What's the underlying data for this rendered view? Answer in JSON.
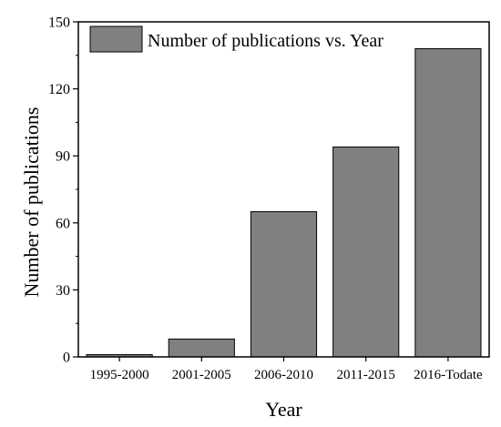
{
  "chart_data": {
    "type": "bar",
    "categories": [
      "1995-2000",
      "2001-2005",
      "2006-2010",
      "2011-2015",
      "2016-Todate"
    ],
    "series": [
      {
        "name": "Number of publications vs. Year",
        "values": [
          1,
          8,
          65,
          94,
          138
        ]
      }
    ],
    "xlabel": "Year",
    "ylabel": "Number of publications",
    "ylim": [
      0,
      150
    ],
    "yticks": [
      "0",
      "30",
      "60",
      "90",
      "120",
      "150"
    ],
    "grid": false,
    "legend": "top-left",
    "bar_color": "#808080",
    "edge_color": "#000000"
  }
}
